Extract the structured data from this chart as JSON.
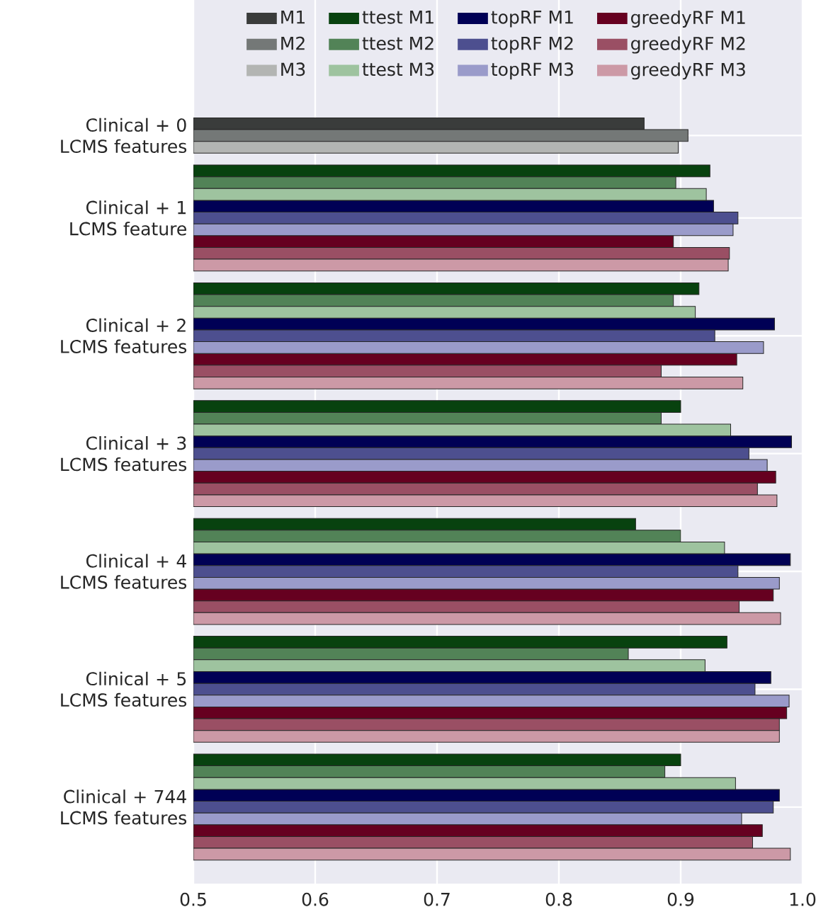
{
  "chart_data": {
    "type": "bar",
    "orientation": "horizontal",
    "categories": [
      "Clinical + 0 LCMS features",
      "Clinical + 1 LCMS feature",
      "Clinical + 2 LCMS features",
      "Clinical + 3 LCMS features",
      "Clinical + 4 LCMS features",
      "Clinical + 5 LCMS features",
      "Clinical + 744 LCMS features"
    ],
    "series": [
      {
        "name": "M1",
        "color": "#3a3c3b",
        "values": [
          0.87,
          null,
          null,
          null,
          null,
          null,
          null
        ]
      },
      {
        "name": "M2",
        "color": "#747877",
        "values": [
          0.906,
          null,
          null,
          null,
          null,
          null,
          null
        ]
      },
      {
        "name": "M3",
        "color": "#b3b5b3",
        "values": [
          0.898,
          null,
          null,
          null,
          null,
          null,
          null
        ]
      },
      {
        "name": "ttest M1",
        "color": "#08420f",
        "values": [
          null,
          0.924,
          0.915,
          0.9,
          0.863,
          0.938,
          0.9
        ]
      },
      {
        "name": "ttest M2",
        "color": "#528357",
        "values": [
          null,
          0.896,
          0.894,
          0.884,
          0.9,
          0.857,
          0.887
        ]
      },
      {
        "name": "ttest M3",
        "color": "#9ec39f",
        "values": [
          null,
          0.921,
          0.912,
          0.941,
          0.936,
          0.92,
          0.945
        ]
      },
      {
        "name": "topRF M1",
        "color": "#000055",
        "values": [
          null,
          0.927,
          0.977,
          0.991,
          0.99,
          0.974,
          0.981
        ]
      },
      {
        "name": "topRF M2",
        "color": "#4d4f8f",
        "values": [
          null,
          0.947,
          0.928,
          0.956,
          0.947,
          0.961,
          0.976
        ]
      },
      {
        "name": "topRF M3",
        "color": "#9a9bca",
        "values": [
          null,
          0.943,
          0.968,
          0.971,
          0.981,
          0.989,
          0.95
        ]
      },
      {
        "name": "greedyRF M1",
        "color": "#660020",
        "values": [
          null,
          0.894,
          0.946,
          0.978,
          0.976,
          0.987,
          0.967
        ]
      },
      {
        "name": "greedyRF M2",
        "color": "#9a4f64",
        "values": [
          null,
          0.94,
          0.884,
          0.963,
          0.948,
          0.981,
          0.959
        ]
      },
      {
        "name": "greedyRF M3",
        "color": "#cc99a6",
        "values": [
          null,
          0.939,
          0.951,
          0.979,
          0.982,
          0.981,
          0.99
        ]
      }
    ],
    "xlim": [
      0.5,
      1.0
    ],
    "xticks": [
      0.5,
      0.6,
      0.7,
      0.8,
      0.9,
      {
        "value": 1.0,
        "label": "1.0"
      }
    ],
    "grid": true,
    "legend": "top"
  }
}
